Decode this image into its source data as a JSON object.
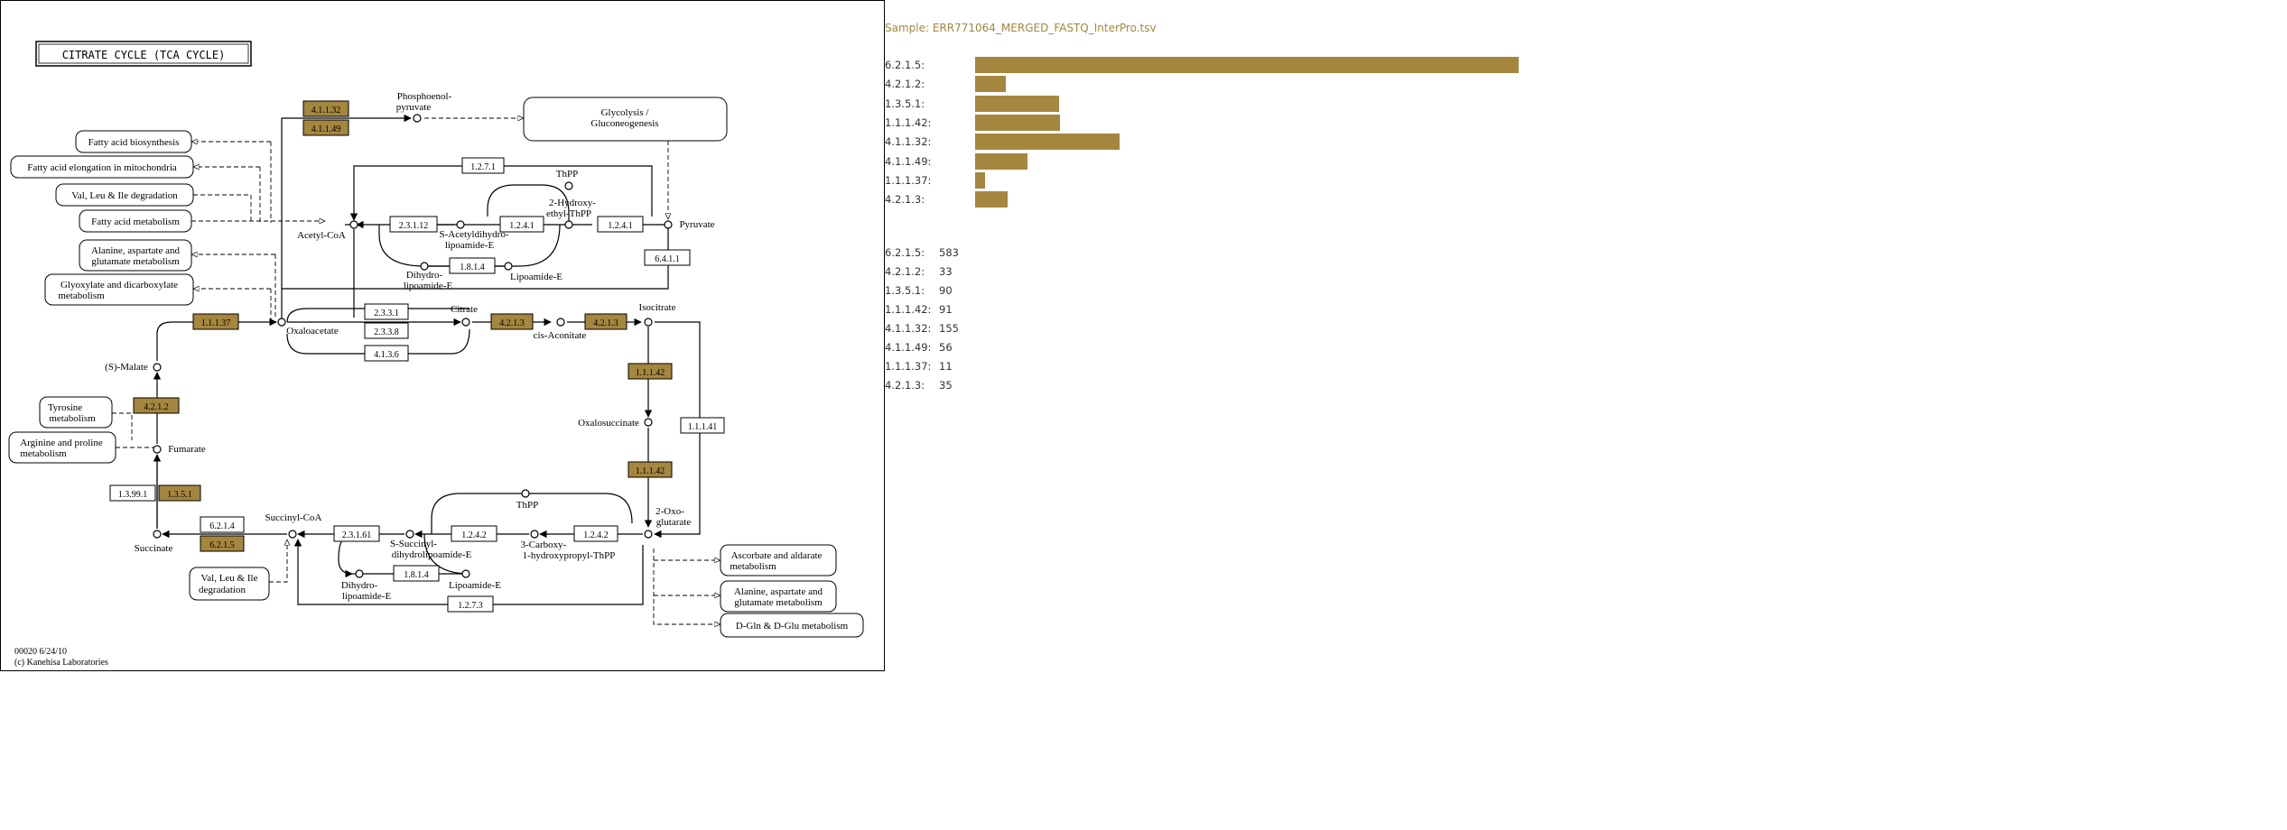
{
  "map": {
    "title": "CITRATE CYCLE (TCA CYCLE)",
    "footer_id": "00020 6/24/10",
    "footer_copyright": "(c) Kanehisa Laboratories",
    "highlight_color": "#a5863e",
    "pathways": {
      "fatty_acid_biosynthesis": "Fatty acid biosynthesis",
      "fatty_acid_elongation": "Fatty acid elongation in mitochondria",
      "val_leu_ile_degradation": "Val, Leu & Ile degradation",
      "fatty_acid_metabolism": "Fatty acid metabolism",
      "alanine_1": "Alanine, aspartate and",
      "alanine_2": "glutamate metabolism",
      "glyoxylate_1": "Glyoxylate and dicarboxylate",
      "glyoxylate_2": "metabolism",
      "glycolysis_1": "Glycolysis /",
      "glycolysis_2": "Gluconeogenesis",
      "tyrosine_1": "Tyrosine",
      "tyrosine_2": "metabolism",
      "arginine_1": "Arginine and proline",
      "arginine_2": "metabolism",
      "val_leu_ile_2_1": "Val, Leu & Ile",
      "val_leu_ile_2_2": "degradation",
      "ascorbate_1": "Ascorbate and aldarate",
      "ascorbate_2": "metabolism",
      "alanine_b_1": "Alanine, aspartate and",
      "alanine_b_2": "glutamate metabolism",
      "dgln": "D-Gln & D-Glu metabolism"
    },
    "compounds": {
      "pep_1": "Phosphoenol-",
      "pep_2": "pyruvate",
      "thpp_top": "ThPP",
      "hydroxyethyl_1": "2-Hydroxy-",
      "hydroxyethyl_2": "ethyl-ThPP",
      "acetylcoa": "Acetyl-CoA",
      "acetyldihydro_1": "S-Acetyldihydro-",
      "acetyldihydro_2": "lipoamide-E",
      "pyruvate": "Pyruvate",
      "dihydro_top_1": "Dihydro-",
      "dihydro_top_2": "lipoamide-E",
      "lipoamide_top": "Lipoamide-E",
      "oxaloacetate": "Oxaloacetate",
      "citrate": "Citrate",
      "cisaconitate": "cis-Aconitate",
      "isocitrate": "Isocitrate",
      "smalate": "(S)-Malate",
      "fumarate": "Fumarate",
      "oxalosuccinate": "Oxalosuccinate",
      "oxoglutarate_1": "2-Oxo-",
      "oxoglutarate_2": "glutarate",
      "thpp_bottom": "ThPP",
      "succinylcoa": "Succinyl-CoA",
      "succinyldihydro_1": "S-Succinyl-",
      "succinyldihydro_2": "dihydrolipoamide-E",
      "carboxyhydroxy_1": "3-Carboxy-",
      "carboxyhydroxy_2": "1-hydroxypropyl-ThPP",
      "succinate": "Succinate",
      "dihydro_bottom_1": "Dihydro-",
      "dihydro_bottom_2": "lipoamide-E",
      "lipoamide_bottom": "Lipoamide-E"
    },
    "enzymes": {
      "e4_1_1_32": "4.1.1.32",
      "e4_1_1_49": "4.1.1.49",
      "e1_2_7_1": "1.2.7.1",
      "e2_3_1_12": "2.3.1.12",
      "e1_2_4_1_a": "1.2.4.1",
      "e1_2_4_1_b": "1.2.4.1",
      "e1_8_1_4_top": "1.8.1.4",
      "e6_4_1_1": "6.4.1.1",
      "e1_1_1_37": "1.1.1.37",
      "e2_3_3_1": "2.3.3.1",
      "e2_3_3_8": "2.3.3.8",
      "e4_1_3_6": "4.1.3.6",
      "e4_2_1_3_a": "4.2.1.3",
      "e4_2_1_3_b": "4.2.1.3",
      "e4_2_1_2": "4.2.1.2",
      "e1_1_1_42_top": "1.1.1.42",
      "e1_1_1_41": "1.1.1.41",
      "e1_1_1_42_bottom": "1.1.1.42",
      "e1_3_99_1": "1.3.99.1",
      "e1_3_5_1": "1.3.5.1",
      "e6_2_1_4": "6.2.1.4",
      "e6_2_1_5": "6.2.1.5",
      "e2_3_1_61": "2.3.1.61",
      "e1_2_4_2_a": "1.2.4.2",
      "e1_2_4_2_b": "1.2.4.2",
      "e1_8_1_4_bottom": "1.8.1.4",
      "e1_2_7_3": "1.2.7.3"
    }
  },
  "panel": {
    "sample": "Sample: ERR771064_MERGED_FASTQ_InterPro.tsv",
    "bar_color": "#a5863e",
    "max_count": 583,
    "items": [
      {
        "label": "6.2.1.5:",
        "count": "583"
      },
      {
        "label": "4.2.1.2:",
        "count": "33"
      },
      {
        "label": "1.3.5.1:",
        "count": "90"
      },
      {
        "label": "1.1.1.42:",
        "count": "91"
      },
      {
        "label": "4.1.1.32:",
        "count": "155"
      },
      {
        "label": "4.1.1.49:",
        "count": "56"
      },
      {
        "label": "1.1.1.37:",
        "count": "11"
      },
      {
        "label": "4.2.1.3:",
        "count": "35"
      }
    ]
  }
}
